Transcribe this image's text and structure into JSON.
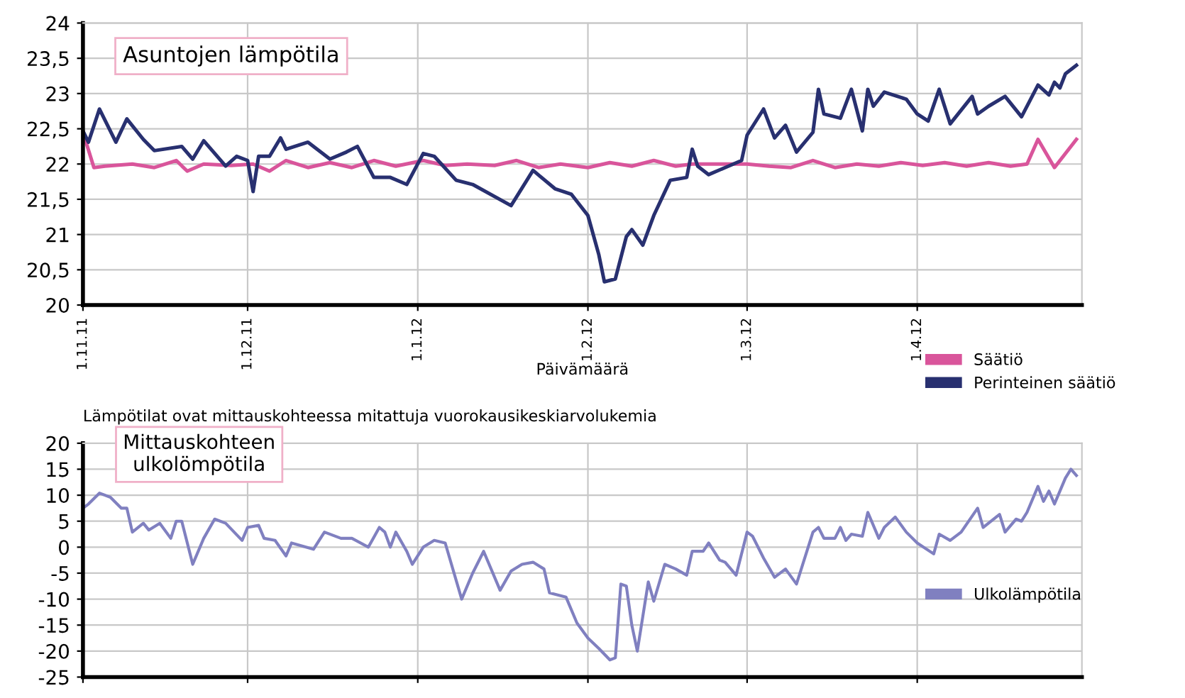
{
  "chart_data": [
    {
      "type": "line",
      "title": "Asuntojen lämpötila",
      "xlabel": "Päivämäärä",
      "annotations": [
        "Lämpötilat ovat mittauskohteessa mitattuja vuorokausikeskiarvolukemia"
      ],
      "series": [
        {
          "name": "Säätiö",
          "color": "#d9559b",
          "x": [
            "2011-11-01",
            "2011-11-03",
            "2011-11-05",
            "2011-11-10",
            "2011-11-14",
            "2011-11-18",
            "2011-11-20",
            "2011-11-23",
            "2011-11-28",
            "2011-12-02",
            "2011-12-05",
            "2011-12-08",
            "2011-12-12",
            "2011-12-16",
            "2011-12-20",
            "2011-12-24",
            "2011-12-28",
            "2012-01-02",
            "2012-01-06",
            "2012-01-10",
            "2012-01-15",
            "2012-01-19",
            "2012-01-23",
            "2012-01-27",
            "2012-02-01",
            "2012-02-05",
            "2012-02-09",
            "2012-02-13",
            "2012-02-17",
            "2012-02-20",
            "2012-02-25",
            "2012-03-01",
            "2012-03-05",
            "2012-03-09",
            "2012-03-13",
            "2012-03-17",
            "2012-03-21",
            "2012-03-25",
            "2012-03-29",
            "2012-04-02",
            "2012-04-06",
            "2012-04-10",
            "2012-04-14",
            "2012-04-18",
            "2012-04-21",
            "2012-04-23",
            "2012-04-26",
            "2012-04-30"
          ],
          "values": [
            22.45,
            21.95,
            21.97,
            22.0,
            21.95,
            22.05,
            21.9,
            22.0,
            21.98,
            22.0,
            21.9,
            22.05,
            21.95,
            22.02,
            21.95,
            22.05,
            21.97,
            22.05,
            21.98,
            22.0,
            21.98,
            22.05,
            21.95,
            22.0,
            21.95,
            22.02,
            21.97,
            22.05,
            21.97,
            22.0,
            22.0,
            22.0,
            21.97,
            21.95,
            22.05,
            21.95,
            22.0,
            21.97,
            22.02,
            21.98,
            22.02,
            21.97,
            22.02,
            21.97,
            22.0,
            22.35,
            21.95,
            22.35
          ]
        },
        {
          "name": "Perinteinen säätiö",
          "color": "#283070",
          "x": [
            "2011-11-01",
            "2011-11-02",
            "2011-11-04",
            "2011-11-07",
            "2011-11-09",
            "2011-11-12",
            "2011-11-14",
            "2011-11-19",
            "2011-11-21",
            "2011-11-23",
            "2011-11-27",
            "2011-11-29",
            "2011-12-01",
            "2011-12-02",
            "2011-12-03",
            "2011-12-05",
            "2011-12-07",
            "2011-12-08",
            "2011-12-12",
            "2011-12-16",
            "2011-12-19",
            "2011-12-21",
            "2011-12-24",
            "2011-12-27",
            "2011-12-30",
            "2012-01-02",
            "2012-01-04",
            "2012-01-08",
            "2012-01-11",
            "2012-01-18",
            "2012-01-22",
            "2012-01-26",
            "2012-01-29",
            "2012-02-01",
            "2012-02-03",
            "2012-02-04",
            "2012-02-06",
            "2012-02-08",
            "2012-02-09",
            "2012-02-11",
            "2012-02-13",
            "2012-02-16",
            "2012-02-19",
            "2012-02-20",
            "2012-02-21",
            "2012-02-23",
            "2012-02-26",
            "2012-02-29",
            "2012-03-01",
            "2012-03-04",
            "2012-03-06",
            "2012-03-08",
            "2012-03-10",
            "2012-03-13",
            "2012-03-14",
            "2012-03-15",
            "2012-03-18",
            "2012-03-20",
            "2012-03-22",
            "2012-03-23",
            "2012-03-24",
            "2012-03-26",
            "2012-03-30",
            "2012-04-01",
            "2012-04-03",
            "2012-04-05",
            "2012-04-07",
            "2012-04-11",
            "2012-04-12",
            "2012-04-14",
            "2012-04-17",
            "2012-04-20",
            "2012-04-23",
            "2012-04-25",
            "2012-04-26",
            "2012-04-27",
            "2012-04-28",
            "2012-04-30"
          ],
          "values": [
            22.47,
            22.31,
            22.78,
            22.31,
            22.64,
            22.35,
            22.19,
            22.25,
            22.07,
            22.33,
            21.97,
            22.11,
            22.05,
            21.61,
            22.11,
            22.11,
            22.37,
            22.21,
            22.31,
            22.07,
            22.17,
            22.25,
            21.81,
            21.81,
            21.71,
            22.15,
            22.11,
            21.77,
            21.71,
            21.41,
            21.91,
            21.65,
            21.57,
            21.27,
            20.71,
            20.33,
            20.37,
            20.97,
            21.07,
            20.85,
            21.27,
            21.77,
            21.81,
            22.21,
            21.97,
            21.85,
            21.95,
            22.05,
            22.41,
            22.78,
            22.37,
            22.55,
            22.17,
            22.45,
            23.06,
            22.71,
            22.65,
            23.06,
            22.47,
            23.06,
            22.82,
            23.02,
            22.92,
            22.71,
            22.61,
            23.06,
            22.57,
            22.96,
            22.71,
            22.82,
            22.96,
            22.67,
            23.12,
            22.98,
            23.16,
            23.08,
            23.28,
            23.4
          ]
        }
      ],
      "xlim": [
        "2011-11-01",
        "2012-05-01"
      ],
      "xticks": [
        {
          "value": "2011-11-01",
          "label": "1.11.11"
        },
        {
          "value": "2011-12-01",
          "label": "1.12.11"
        },
        {
          "value": "2012-01-01",
          "label": "1.1.12"
        },
        {
          "value": "2012-02-01",
          "label": "1.2.12"
        },
        {
          "value": "2012-03-01",
          "label": "1.3.12"
        },
        {
          "value": "2012-04-01",
          "label": "1.4.12"
        }
      ],
      "ylim": [
        20,
        24
      ],
      "yticks": [
        20,
        {
          "value": 20.5,
          "label": "20,5"
        },
        21,
        {
          "value": 21.5,
          "label": "21,5"
        },
        22,
        {
          "value": 22.5,
          "label": "22,5"
        },
        23,
        {
          "value": 23.5,
          "label": "23,5"
        },
        24
      ],
      "grid": true,
      "legend": "bottom right",
      "line_style": "solid"
    },
    {
      "type": "line",
      "title": "Mittauskohteen\nulkolömpötila",
      "series": [
        {
          "name": "Ulkolämpötila",
          "color": "#8080c0",
          "x": [
            "2011-11-01",
            "2011-11-02",
            "2011-11-04",
            "2011-11-06",
            "2011-11-08",
            "2011-11-09",
            "2011-11-10",
            "2011-11-12",
            "2011-11-13",
            "2011-11-15",
            "2011-11-17",
            "2011-11-18",
            "2011-11-19",
            "2011-11-21",
            "2011-11-23",
            "2011-11-25",
            "2011-11-27",
            "2011-11-30",
            "2011-12-01",
            "2011-12-03",
            "2011-12-04",
            "2011-12-06",
            "2011-12-08",
            "2011-12-09",
            "2011-12-13",
            "2011-12-15",
            "2011-12-18",
            "2011-12-20",
            "2011-12-23",
            "2011-12-25",
            "2011-12-26",
            "2011-12-27",
            "2011-12-28",
            "2011-12-30",
            "2011-12-31",
            "2012-01-02",
            "2012-01-04",
            "2012-01-06",
            "2012-01-09",
            "2012-01-11",
            "2012-01-13",
            "2012-01-16",
            "2012-01-18",
            "2012-01-20",
            "2012-01-22",
            "2012-01-24",
            "2012-01-25",
            "2012-01-28",
            "2012-01-30",
            "2012-02-01",
            "2012-02-03",
            "2012-02-05",
            "2012-02-06",
            "2012-02-07",
            "2012-02-08",
            "2012-02-09",
            "2012-02-10",
            "2012-02-12",
            "2012-02-13",
            "2012-02-15",
            "2012-02-17",
            "2012-02-19",
            "2012-02-20",
            "2012-02-22",
            "2012-02-23",
            "2012-02-25",
            "2012-02-26",
            "2012-02-28",
            "2012-03-01",
            "2012-03-02",
            "2012-03-04",
            "2012-03-06",
            "2012-03-08",
            "2012-03-10",
            "2012-03-13",
            "2012-03-14",
            "2012-03-15",
            "2012-03-17",
            "2012-03-18",
            "2012-03-19",
            "2012-03-20",
            "2012-03-22",
            "2012-03-23",
            "2012-03-25",
            "2012-03-26",
            "2012-03-28",
            "2012-03-30",
            "2012-04-01",
            "2012-04-04",
            "2012-04-05",
            "2012-04-07",
            "2012-04-09",
            "2012-04-12",
            "2012-04-13",
            "2012-04-16",
            "2012-04-17",
            "2012-04-19",
            "2012-04-20",
            "2012-04-21",
            "2012-04-23",
            "2012-04-24",
            "2012-04-25",
            "2012-04-26",
            "2012-04-28",
            "2012-04-29",
            "2012-04-30"
          ],
          "values": [
            7.5,
            8.3,
            10.4,
            9.6,
            7.5,
            7.5,
            2.9,
            4.6,
            3.3,
            4.6,
            1.7,
            5.0,
            5.0,
            -3.3,
            1.7,
            5.4,
            4.6,
            1.3,
            3.8,
            4.2,
            1.7,
            1.3,
            -1.7,
            0.8,
            -0.4,
            2.9,
            1.7,
            1.7,
            0,
            3.8,
            2.9,
            0,
            2.9,
            -0.8,
            -3.3,
            0,
            1.3,
            0.8,
            -10,
            -5,
            -0.8,
            -8.3,
            -4.6,
            -3.3,
            -2.9,
            -4.2,
            -8.8,
            -9.6,
            -14.6,
            -17.5,
            -19.5,
            -21.7,
            -21.3,
            -7.1,
            -7.5,
            -15,
            -20,
            -6.7,
            -10.4,
            -3.3,
            -4.2,
            -5.4,
            -0.8,
            -0.8,
            0.8,
            -2.5,
            -2.9,
            -5.4,
            2.9,
            2.1,
            -2.1,
            -5.8,
            -4.2,
            -7.1,
            2.9,
            3.8,
            1.7,
            1.7,
            3.8,
            1.3,
            2.5,
            2.1,
            6.7,
            1.7,
            3.8,
            5.8,
            2.9,
            0.8,
            -1.3,
            2.5,
            1.3,
            2.9,
            7.5,
            3.8,
            6.3,
            2.9,
            5.4,
            5.0,
            6.7,
            11.7,
            8.8,
            10.8,
            8.3,
            13.3,
            15.0,
            13.8
          ]
        }
      ],
      "xlim": [
        "2011-11-01",
        "2012-05-01"
      ],
      "xticks": [
        {
          "value": "2011-11-01",
          "label": null
        },
        {
          "value": "2011-12-01",
          "label": null
        },
        {
          "value": "2012-01-01",
          "label": null
        },
        {
          "value": "2012-02-01",
          "label": null
        },
        {
          "value": "2012-03-01",
          "label": null
        },
        {
          "value": "2012-04-01",
          "label": null
        }
      ],
      "ylim": [
        -25,
        20
      ],
      "yticks": [
        -25,
        -20,
        -15,
        -10,
        -5,
        0,
        5,
        10,
        15,
        20
      ],
      "tick_labels": "y",
      "grid": true,
      "legend": "right",
      "line_style": "solid"
    }
  ]
}
